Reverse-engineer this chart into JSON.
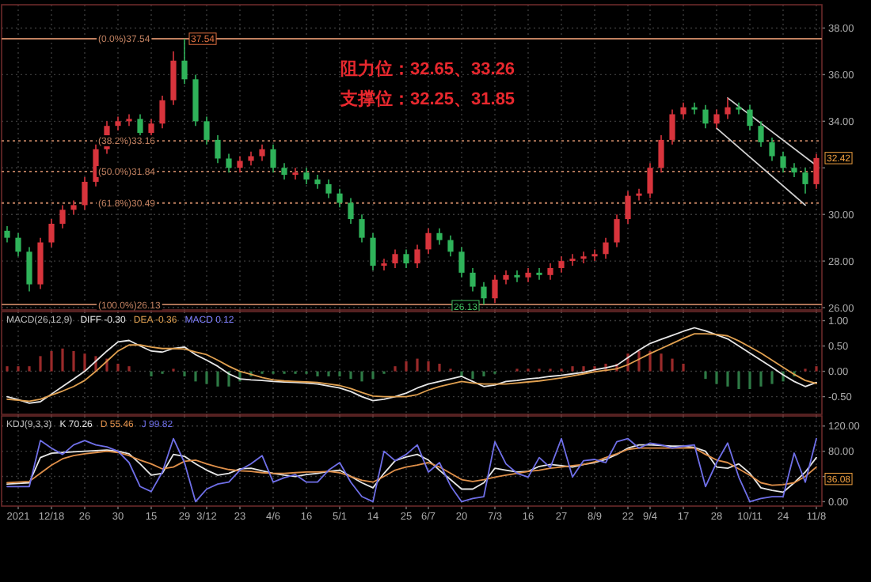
{
  "chart_data": [
    {
      "type": "candlestick",
      "categories": [
        null,
        null,
        null,
        null,
        null,
        null,
        null,
        null,
        null,
        null,
        null,
        null,
        null,
        null,
        null,
        null,
        null,
        null,
        null,
        null,
        null,
        null,
        null,
        null,
        null,
        null,
        null,
        null,
        null,
        null,
        null,
        null,
        null,
        null,
        null,
        null,
        null,
        null,
        null,
        null,
        null,
        null,
        null,
        null,
        null,
        null,
        null,
        null,
        null,
        null,
        null,
        null,
        null,
        null,
        null,
        null,
        null,
        null,
        null,
        null,
        null,
        null,
        null,
        null,
        null,
        null,
        null,
        null,
        null,
        null,
        null,
        null,
        null,
        null
      ],
      "ohlc": [
        [
          29.3,
          29.5,
          28.8,
          29.0
        ],
        [
          29.0,
          29.2,
          28.2,
          28.4
        ],
        [
          28.4,
          28.6,
          26.7,
          27.0
        ],
        [
          27.0,
          29.0,
          26.8,
          28.8
        ],
        [
          28.8,
          29.8,
          28.6,
          29.6
        ],
        [
          29.6,
          30.4,
          29.4,
          30.2
        ],
        [
          30.2,
          30.6,
          30.0,
          30.4
        ],
        [
          30.4,
          31.6,
          30.2,
          31.4
        ],
        [
          31.4,
          33.0,
          31.2,
          32.8
        ],
        [
          32.8,
          34.0,
          32.6,
          33.8
        ],
        [
          33.8,
          34.2,
          33.6,
          34.0
        ],
        [
          34.0,
          34.3,
          33.8,
          34.1
        ],
        [
          34.1,
          34.3,
          33.3,
          33.5
        ],
        [
          33.5,
          34.1,
          33.3,
          33.9
        ],
        [
          33.9,
          35.1,
          33.7,
          34.9
        ],
        [
          34.9,
          37.0,
          34.7,
          36.6
        ],
        [
          36.6,
          37.54,
          35.6,
          35.8
        ],
        [
          35.8,
          36.0,
          33.8,
          34.0
        ],
        [
          34.0,
          34.2,
          33.0,
          33.2
        ],
        [
          33.2,
          33.4,
          32.2,
          32.4
        ],
        [
          32.4,
          32.6,
          31.8,
          32.0
        ],
        [
          32.0,
          32.5,
          31.8,
          32.3
        ],
        [
          32.3,
          32.7,
          32.1,
          32.5
        ],
        [
          32.5,
          33.0,
          32.3,
          32.8
        ],
        [
          32.8,
          33.0,
          31.8,
          32.0
        ],
        [
          32.0,
          32.2,
          31.5,
          31.7
        ],
        [
          31.7,
          32.0,
          31.5,
          31.8
        ],
        [
          31.8,
          32.0,
          31.3,
          31.5
        ],
        [
          31.5,
          31.7,
          31.1,
          31.3
        ],
        [
          31.3,
          31.5,
          30.7,
          30.9
        ],
        [
          30.9,
          31.1,
          30.3,
          30.5
        ],
        [
          30.5,
          30.7,
          29.6,
          29.8
        ],
        [
          29.8,
          30.0,
          28.8,
          29.0
        ],
        [
          29.0,
          29.2,
          27.6,
          27.8
        ],
        [
          27.8,
          28.1,
          27.6,
          27.9
        ],
        [
          27.9,
          28.5,
          27.7,
          28.3
        ],
        [
          28.3,
          28.5,
          27.7,
          27.9
        ],
        [
          27.9,
          28.7,
          27.7,
          28.5
        ],
        [
          28.5,
          29.4,
          28.3,
          29.2
        ],
        [
          29.2,
          29.4,
          28.7,
          28.9
        ],
        [
          28.9,
          29.1,
          28.2,
          28.4
        ],
        [
          28.4,
          28.6,
          27.3,
          27.5
        ],
        [
          27.5,
          27.7,
          26.7,
          26.9
        ],
        [
          26.9,
          27.1,
          26.13,
          26.4
        ],
        [
          26.4,
          27.4,
          26.2,
          27.2
        ],
        [
          27.2,
          27.6,
          27.0,
          27.4
        ],
        [
          27.4,
          27.6,
          27.1,
          27.3
        ],
        [
          27.3,
          27.7,
          27.1,
          27.5
        ],
        [
          27.5,
          27.7,
          27.2,
          27.4
        ],
        [
          27.4,
          27.9,
          27.2,
          27.7
        ],
        [
          27.7,
          28.2,
          27.5,
          28.0
        ],
        [
          28.0,
          28.3,
          27.8,
          28.1
        ],
        [
          28.1,
          28.4,
          27.9,
          28.2
        ],
        [
          28.2,
          28.5,
          28.0,
          28.3
        ],
        [
          28.3,
          29.0,
          28.1,
          28.8
        ],
        [
          28.8,
          30.0,
          28.6,
          29.8
        ],
        [
          29.8,
          31.0,
          29.6,
          30.8
        ],
        [
          30.8,
          31.1,
          30.6,
          30.9
        ],
        [
          30.9,
          32.2,
          30.7,
          32.0
        ],
        [
          32.0,
          33.4,
          31.8,
          33.2
        ],
        [
          33.2,
          34.5,
          33.0,
          34.3
        ],
        [
          34.3,
          34.8,
          34.1,
          34.6
        ],
        [
          34.6,
          34.8,
          34.3,
          34.5
        ],
        [
          34.5,
          34.7,
          33.7,
          33.9
        ],
        [
          33.9,
          34.5,
          33.7,
          34.3
        ],
        [
          34.3,
          35.0,
          34.1,
          34.6
        ],
        [
          34.6,
          34.8,
          34.3,
          34.5
        ],
        [
          34.5,
          34.7,
          33.6,
          33.8
        ],
        [
          33.8,
          34.0,
          32.9,
          33.1
        ],
        [
          33.1,
          33.3,
          32.3,
          32.5
        ],
        [
          32.5,
          32.7,
          31.8,
          32.0
        ],
        [
          32.0,
          32.2,
          31.6,
          31.8
        ],
        [
          31.8,
          32.0,
          30.9,
          31.3
        ],
        [
          31.3,
          32.6,
          31.1,
          32.42
        ]
      ],
      "colors": [
        "#2fb35a",
        "#2fb35a",
        "#2fb35a",
        "#d8343c",
        "#d8343c",
        "#d8343c",
        "#d8343c",
        "#d8343c",
        "#d8343c",
        "#d8343c",
        "#d8343c",
        "#d8343c",
        "#2fb35a",
        "#d8343c",
        "#d8343c",
        "#d8343c",
        "#2fb35a",
        "#2fb35a",
        "#2fb35a",
        "#2fb35a",
        "#2fb35a",
        "#d8343c",
        "#d8343c",
        "#d8343c",
        "#2fb35a",
        "#2fb35a",
        "#d8343c",
        "#2fb35a",
        "#2fb35a",
        "#2fb35a",
        "#2fb35a",
        "#2fb35a",
        "#2fb35a",
        "#2fb35a",
        "#d8343c",
        "#d8343c",
        "#2fb35a",
        "#d8343c",
        "#d8343c",
        "#2fb35a",
        "#2fb35a",
        "#2fb35a",
        "#2fb35a",
        "#2fb35a",
        "#d8343c",
        "#d8343c",
        "#2fb35a",
        "#d8343c",
        "#2fb35a",
        "#d8343c",
        "#d8343c",
        "#d8343c",
        "#d8343c",
        "#d8343c",
        "#d8343c",
        "#d8343c",
        "#d8343c",
        "#d8343c",
        "#d8343c",
        "#d8343c",
        "#d8343c",
        "#d8343c",
        "#2fb35a",
        "#2fb35a",
        "#d8343c",
        "#d8343c",
        "#2fb35a",
        "#2fb35a",
        "#2fb35a",
        "#2fb35a",
        "#2fb35a",
        "#2fb35a",
        "#2fb35a",
        "#d8343c"
      ],
      "value_labels": [
        null,
        null,
        null,
        null,
        null,
        null,
        null,
        null,
        null,
        null,
        null,
        null,
        null,
        null,
        null,
        null,
        "37.54",
        null,
        null,
        null,
        null,
        null,
        null,
        null,
        null,
        null,
        null,
        null,
        null,
        null,
        null,
        null,
        null,
        null,
        null,
        null,
        null,
        null,
        null,
        null,
        null,
        null,
        null,
        "26.13",
        null,
        null,
        null,
        null,
        null,
        null,
        null,
        null,
        null,
        null,
        null,
        null,
        null,
        null,
        null,
        null,
        null,
        null,
        null,
        null,
        null,
        null,
        null,
        null,
        null,
        null,
        null,
        null,
        null,
        null
      ],
      "series": [
        {
          "type": "line",
          "color": "#d0d0d0",
          "values": [
            null,
            null,
            null,
            null,
            null,
            null,
            null,
            null,
            null,
            null,
            null,
            null,
            null,
            null,
            null,
            null,
            null,
            null,
            null,
            null,
            null,
            null,
            null,
            null,
            null,
            null,
            null,
            null,
            null,
            null,
            null,
            null,
            null,
            null,
            null,
            null,
            null,
            null,
            null,
            null,
            null,
            null,
            null,
            null,
            null,
            null,
            null,
            null,
            null,
            null,
            null,
            null,
            null,
            null,
            null,
            null,
            null,
            null,
            null,
            null,
            null,
            null,
            null,
            null,
            null,
            35.0,
            null,
            null,
            null,
            null,
            null,
            null,
            null,
            32.1
          ]
        },
        {
          "type": "line",
          "color": "#d0d0d0",
          "values": [
            null,
            null,
            null,
            null,
            null,
            null,
            null,
            null,
            null,
            null,
            null,
            null,
            null,
            null,
            null,
            null,
            null,
            null,
            null,
            null,
            null,
            null,
            null,
            null,
            null,
            null,
            null,
            null,
            null,
            null,
            null,
            null,
            null,
            null,
            null,
            null,
            null,
            null,
            null,
            null,
            null,
            null,
            null,
            null,
            null,
            null,
            null,
            null,
            null,
            null,
            null,
            null,
            null,
            null,
            null,
            null,
            null,
            null,
            null,
            null,
            null,
            null,
            null,
            null,
            33.7,
            null,
            null,
            null,
            null,
            null,
            null,
            null,
            30.4,
            null
          ]
        }
      ],
      "ylim": [
        25.9,
        39.0
      ],
      "yticks": [
        {
          "value": 26,
          "label": "26.00"
        },
        {
          "value": 28,
          "label": "28.00"
        },
        {
          "value": 30,
          "label": "30.00"
        },
        {
          "value": 32,
          "label": null
        },
        {
          "value": 34,
          "label": "34.00"
        },
        {
          "value": 36,
          "label": "36.00"
        },
        {
          "value": 38,
          "label": "38.00"
        }
      ],
      "tick_labels": "y",
      "grid": true,
      "ref_lines": [
        {
          "axis": "y",
          "value": 37.54,
          "label": "(0.0%)37.54",
          "color": "#c08060",
          "line_style": "solid"
        },
        {
          "axis": "y",
          "value": 33.16,
          "label": "(38.2%)33.16",
          "color": "#c08060",
          "line_style": "dotted"
        },
        {
          "axis": "y",
          "value": 31.84,
          "label": "(50.0%)31.84",
          "color": "#c08060",
          "line_style": "dotted"
        },
        {
          "axis": "y",
          "value": 30.49,
          "label": "(61.8%)30.49",
          "color": "#c08060",
          "line_style": "dotted"
        },
        {
          "axis": "y",
          "value": 26.13,
          "label": "(100.0%)26.13",
          "color": "#c08060",
          "line_style": "solid"
        }
      ],
      "annotations": [
        "阻力位：32.65、33.26",
        "支撑位：32.25、31.85",
        {
          "text": "32.42",
          "y": 32.42
        }
      ]
    },
    {
      "type": "line",
      "title": "MACD(26,12,9)",
      "legend": "top left",
      "categories": [
        null,
        null,
        null,
        null,
        null,
        null,
        null,
        null,
        null,
        null,
        null,
        null,
        null,
        null,
        null,
        null,
        null,
        null,
        null,
        null,
        null,
        null,
        null,
        null,
        null,
        null,
        null,
        null,
        null,
        null,
        null,
        null,
        null,
        null,
        null,
        null,
        null,
        null,
        null,
        null,
        null,
        null,
        null,
        null,
        null,
        null,
        null,
        null,
        null,
        null,
        null,
        null,
        null,
        null,
        null,
        null,
        null,
        null,
        null,
        null,
        null,
        null,
        null,
        null,
        null,
        null,
        null,
        null,
        null,
        null,
        null,
        null,
        null,
        null
      ],
      "series": [
        {
          "type": "bar",
          "values": [
            0.1,
            0.1,
            0.1,
            0.3,
            0.4,
            0.45,
            0.4,
            0.35,
            0.3,
            0.25,
            0.15,
            0.1,
            0,
            -0.1,
            -0.05,
            0.05,
            -0.1,
            -0.2,
            -0.25,
            -0.3,
            -0.3,
            -0.2,
            -0.1,
            -0.05,
            -0.05,
            -0.05,
            -0.05,
            -0.05,
            -0.1,
            -0.1,
            -0.1,
            -0.15,
            -0.2,
            -0.15,
            -0.05,
            0.1,
            0.2,
            0.25,
            0.2,
            0.15,
            0.05,
            -0.1,
            -0.15,
            -0.1,
            -0.05,
            0,
            0.05,
            0.05,
            0.05,
            0.05,
            0.05,
            0.1,
            0.1,
            0.1,
            0.15,
            0.15,
            0.35,
            0.4,
            0.4,
            0.35,
            0.25,
            0.15,
            0,
            -0.15,
            -0.25,
            -0.3,
            -0.35,
            -0.35,
            -0.3,
            -0.25,
            -0.2,
            -0.1,
            0.05,
            0.1
          ],
          "colors": [
            "#9a2a2a",
            "#9a2a2a",
            "#9a2a2a",
            "#9a2a2a",
            "#9a2a2a",
            "#9a2a2a",
            "#9a2a2a",
            "#9a2a2a",
            "#9a2a2a",
            "#9a2a2a",
            "#9a2a2a",
            "#9a2a2a",
            "#9a2a2a",
            "#2e7a45",
            "#2e7a45",
            "#9a2a2a",
            "#2e7a45",
            "#2e7a45",
            "#2e7a45",
            "#2e7a45",
            "#2e7a45",
            "#2e7a45",
            "#2e7a45",
            "#2e7a45",
            "#2e7a45",
            "#2e7a45",
            "#2e7a45",
            "#2e7a45",
            "#2e7a45",
            "#2e7a45",
            "#2e7a45",
            "#2e7a45",
            "#2e7a45",
            "#2e7a45",
            "#2e7a45",
            "#9a2a2a",
            "#9a2a2a",
            "#9a2a2a",
            "#9a2a2a",
            "#9a2a2a",
            "#9a2a2a",
            "#2e7a45",
            "#2e7a45",
            "#2e7a45",
            "#2e7a45",
            "#9a2a2a",
            "#9a2a2a",
            "#9a2a2a",
            "#9a2a2a",
            "#9a2a2a",
            "#9a2a2a",
            "#9a2a2a",
            "#9a2a2a",
            "#9a2a2a",
            "#9a2a2a",
            "#9a2a2a",
            "#9a2a2a",
            "#9a2a2a",
            "#9a2a2a",
            "#9a2a2a",
            "#9a2a2a",
            "#9a2a2a",
            "#9a2a2a",
            "#2e7a45",
            "#2e7a45",
            "#2e7a45",
            "#2e7a45",
            "#2e7a45",
            "#2e7a45",
            "#2e7a45",
            "#2e7a45",
            "#2e7a45",
            "#9a2a2a",
            "#9a2a2a"
          ]
        },
        {
          "name": "DIFF -0.30",
          "color": "#e6e6e6",
          "values": [
            -0.5,
            -0.56,
            -0.63,
            -0.6,
            -0.45,
            -0.3,
            -0.15,
            0.0,
            0.2,
            0.4,
            0.58,
            0.61,
            0.5,
            0.4,
            0.38,
            0.45,
            0.48,
            0.33,
            0.22,
            0.1,
            -0.05,
            -0.15,
            -0.17,
            -0.18,
            -0.2,
            -0.21,
            -0.22,
            -0.23,
            -0.25,
            -0.29,
            -0.33,
            -0.4,
            -0.5,
            -0.58,
            -0.55,
            -0.5,
            -0.43,
            -0.33,
            -0.25,
            -0.2,
            -0.15,
            -0.1,
            -0.2,
            -0.3,
            -0.27,
            -0.2,
            -0.18,
            -0.15,
            -0.13,
            -0.1,
            -0.08,
            -0.05,
            -0.02,
            0.03,
            0.07,
            0.12,
            0.27,
            0.42,
            0.55,
            0.63,
            0.71,
            0.79,
            0.86,
            0.8,
            0.72,
            0.64,
            0.5,
            0.36,
            0.22,
            0.08,
            -0.07,
            -0.2,
            -0.3,
            -0.22
          ]
        },
        {
          "name": "DEA -0.36",
          "color": "#e0a050",
          "values": [
            -0.55,
            -0.57,
            -0.59,
            -0.55,
            -0.47,
            -0.39,
            -0.3,
            -0.18,
            0.0,
            0.2,
            0.4,
            0.52,
            0.52,
            0.48,
            0.45,
            0.45,
            0.44,
            0.38,
            0.33,
            0.22,
            0.1,
            0.0,
            -0.06,
            -0.12,
            -0.17,
            -0.19,
            -0.2,
            -0.21,
            -0.22,
            -0.25,
            -0.28,
            -0.34,
            -0.42,
            -0.49,
            -0.5,
            -0.5,
            -0.5,
            -0.46,
            -0.37,
            -0.3,
            -0.25,
            -0.2,
            -0.23,
            -0.25,
            -0.25,
            -0.25,
            -0.23,
            -0.21,
            -0.19,
            -0.16,
            -0.13,
            -0.09,
            -0.05,
            -0.01,
            0.02,
            0.05,
            0.13,
            0.24,
            0.35,
            0.45,
            0.55,
            0.65,
            0.74,
            0.74,
            0.73,
            0.7,
            0.6,
            0.48,
            0.36,
            0.22,
            0.08,
            -0.06,
            -0.18,
            -0.24
          ]
        }
      ],
      "ylim": [
        -0.85,
        1.18
      ],
      "yticks": [
        {
          "value": -0.5,
          "label": "-0.50"
        },
        {
          "value": 0,
          "label": "0.00"
        },
        {
          "value": 0.5,
          "label": "0.50"
        },
        {
          "value": 1,
          "label": "1.00"
        }
      ],
      "tick_labels": "y",
      "grid": true,
      "annotations": [
        "MACD 0.12"
      ]
    },
    {
      "type": "line",
      "title": "KDJ(9,3,3)",
      "legend": "top left",
      "categories": [
        null,
        "2021",
        null,
        null,
        "12/18",
        null,
        null,
        "26",
        null,
        null,
        "30",
        null,
        null,
        "15",
        null,
        null,
        "29",
        null,
        "3/12",
        null,
        null,
        "23",
        null,
        null,
        "4/6",
        null,
        null,
        "16",
        null,
        null,
        "5/1",
        null,
        null,
        "14",
        null,
        null,
        "25",
        null,
        "6/7",
        null,
        null,
        "20",
        null,
        null,
        "7/3",
        null,
        null,
        "16",
        null,
        null,
        "27",
        null,
        null,
        "8/9",
        null,
        null,
        "22",
        null,
        "9/4",
        null,
        null,
        "17",
        null,
        null,
        "28",
        null,
        null,
        "10/11",
        null,
        null,
        "24",
        null,
        null,
        "11/8"
      ],
      "series": [
        {
          "name": "K 70.26",
          "color": "#e6e6e6",
          "values": [
            28,
            29,
            30,
            70,
            77,
            78,
            79,
            80,
            81,
            82,
            80,
            76,
            60,
            42,
            45,
            75,
            72,
            60,
            50,
            42,
            45,
            52,
            53,
            49,
            45,
            42,
            40,
            43,
            45,
            48,
            50,
            40,
            30,
            22,
            45,
            65,
            71,
            75,
            66,
            50,
            35,
            20,
            20,
            30,
            53,
            50,
            47,
            48,
            56,
            59,
            57,
            55,
            59,
            62,
            67,
            75,
            85,
            90,
            90,
            89,
            88,
            88,
            86,
            80,
            55,
            53,
            60,
            45,
            22,
            18,
            15,
            30,
            47,
            70
          ]
        },
        {
          "name": "D 55.46",
          "color": "#e0904a",
          "values": [
            30,
            31,
            32,
            45,
            58,
            68,
            73,
            76,
            78,
            80,
            78,
            73,
            66,
            60,
            52,
            55,
            64,
            66,
            60,
            55,
            51,
            49,
            48,
            46,
            45,
            45,
            46,
            47,
            47,
            48,
            46,
            40,
            34,
            31,
            40,
            50,
            55,
            58,
            62,
            55,
            45,
            35,
            32,
            35,
            39,
            42,
            45,
            48,
            50,
            53,
            55,
            57,
            59,
            63,
            70,
            76,
            83,
            85,
            85,
            85,
            85,
            85,
            85,
            75,
            66,
            62,
            52,
            42,
            30,
            26,
            27,
            30,
            40,
            55
          ]
        },
        {
          "name": "J 99.82",
          "color": "#6f6fe8",
          "values": [
            24,
            24,
            24,
            97,
            85,
            75,
            90,
            97,
            90,
            87,
            80,
            62,
            24,
            16,
            47,
            100,
            62,
            0,
            20,
            28,
            31,
            50,
            60,
            73,
            31,
            38,
            43,
            31,
            31,
            50,
            62,
            31,
            8,
            0,
            80,
            65,
            75,
            90,
            47,
            62,
            25,
            0,
            5,
            8,
            95,
            60,
            45,
            39,
            70,
            54,
            100,
            39,
            65,
            67,
            62,
            95,
            100,
            85,
            93,
            90,
            85,
            88,
            90,
            24,
            62,
            93,
            39,
            0,
            5,
            8,
            8,
            77,
            31,
            100
          ]
        }
      ],
      "ylim": [
        -7,
        136
      ],
      "yticks": [
        {
          "value": 0,
          "label": "0.00"
        },
        {
          "value": 40,
          "label": null
        },
        {
          "value": 80,
          "label": "80.00"
        },
        {
          "value": 120,
          "label": "120.00"
        }
      ],
      "grid": true,
      "annotations": [
        {
          "text": "36.08",
          "y": 36.08
        }
      ]
    }
  ]
}
